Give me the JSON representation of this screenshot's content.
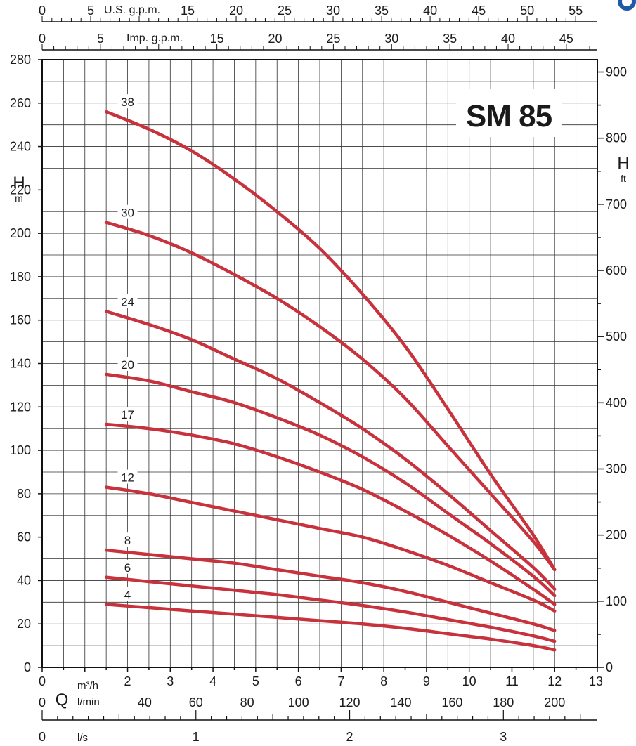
{
  "chart_data": {
    "type": "line",
    "title": "SM 85",
    "xlabel": "Q",
    "ylabel": "H",
    "ylabel_unit": "m",
    "y2label": "H",
    "y2label_unit": "ft",
    "xlim": [
      0,
      13
    ],
    "ylim": [
      0,
      280
    ],
    "y2lim": [
      0,
      918.6
    ],
    "grid": true,
    "x_unit_label": "m³/h",
    "x_ticks": [
      "0",
      "1",
      "2",
      "3",
      "4",
      "5",
      "6",
      "7",
      "8",
      "9",
      "10",
      "11",
      "12",
      "13"
    ],
    "y_ticks": [
      "0",
      "20",
      "40",
      "60",
      "80",
      "100",
      "120",
      "140",
      "160",
      "180",
      "200",
      "220",
      "240",
      "260",
      "280"
    ],
    "y2_ticks": [
      "0",
      "100",
      "200",
      "300",
      "400",
      "500",
      "600",
      "700",
      "800",
      "900"
    ],
    "secondary_axes": {
      "us_gpm": {
        "label": "U.S. g.p.m.",
        "ticks": [
          "0",
          "5",
          "15",
          "20",
          "25",
          "30",
          "35",
          "40",
          "45",
          "50",
          "55"
        ]
      },
      "imp_gpm": {
        "label": "Imp. g.p.m.",
        "ticks": [
          "0",
          "5",
          "15",
          "20",
          "25",
          "30",
          "35",
          "40",
          "45"
        ]
      },
      "lmin": {
        "label": "l/min",
        "ticks": [
          "0",
          "40",
          "60",
          "80",
          "100",
          "120",
          "140",
          "160",
          "180",
          "200"
        ]
      },
      "ls": {
        "label": "l/s",
        "ticks": [
          "0",
          "1",
          "2",
          "3"
        ]
      }
    },
    "series": [
      {
        "name": "38",
        "x": [
          1.5,
          2.5,
          3.5,
          4.5,
          5.5,
          6.5,
          7.5,
          8.5,
          9.5,
          10.5,
          11.5,
          12.0
        ],
        "values": [
          256,
          248,
          238,
          225,
          210,
          193,
          172,
          148,
          119,
          89,
          61,
          45
        ]
      },
      {
        "name": "30",
        "x": [
          1.5,
          2.5,
          3.5,
          4.5,
          5.5,
          6.5,
          7.5,
          8.5,
          9.5,
          10.5,
          11.5,
          12.0
        ],
        "values": [
          205,
          199,
          191,
          181,
          170,
          157,
          142,
          124,
          102,
          80,
          58,
          45
        ]
      },
      {
        "name": "24",
        "x": [
          1.5,
          2.5,
          3.5,
          4.5,
          5.5,
          6.5,
          7.5,
          8.5,
          9.5,
          10.5,
          11.5,
          12.0
        ],
        "values": [
          164,
          158,
          151,
          142,
          133,
          122,
          110,
          96,
          80,
          63,
          46,
          36
        ]
      },
      {
        "name": "20",
        "x": [
          1.5,
          2.5,
          3.5,
          4.5,
          5.5,
          6.5,
          7.5,
          8.5,
          9.5,
          10.5,
          11.5,
          12.0
        ],
        "values": [
          135,
          132,
          127,
          122,
          115,
          107,
          97,
          85,
          71,
          57,
          42,
          33
        ]
      },
      {
        "name": "17",
        "x": [
          1.5,
          2.5,
          3.5,
          4.5,
          5.5,
          6.5,
          7.5,
          8.5,
          9.5,
          10.5,
          11.5,
          12.0
        ],
        "values": [
          112,
          110,
          107,
          103,
          97,
          90,
          82,
          72,
          61,
          49,
          36,
          29
        ]
      },
      {
        "name": "12",
        "x": [
          1.5,
          2.5,
          3.5,
          4.5,
          5.5,
          6.5,
          7.5,
          8.5,
          9.5,
          10.5,
          11.5,
          12.0
        ],
        "values": [
          83,
          80,
          76,
          72,
          68,
          64,
          60,
          54,
          47,
          39,
          31,
          26
        ]
      },
      {
        "name": "8",
        "x": [
          1.5,
          2.5,
          3.5,
          4.5,
          5.5,
          6.5,
          7.5,
          8.5,
          9.5,
          10.5,
          11.5,
          12.0
        ],
        "values": [
          54,
          52,
          50,
          48,
          45,
          42,
          39,
          35,
          30,
          25,
          20,
          17
        ]
      },
      {
        "name": "6",
        "x": [
          1.5,
          2.5,
          3.5,
          4.5,
          5.5,
          6.5,
          7.5,
          8.5,
          9.5,
          10.5,
          11.5,
          12.0
        ],
        "values": [
          41.5,
          39.5,
          37.5,
          35.5,
          33.5,
          31,
          28.5,
          25.5,
          22,
          18.5,
          14.5,
          12
        ]
      },
      {
        "name": "4",
        "x": [
          1.5,
          2.5,
          3.5,
          4.5,
          5.5,
          6.5,
          7.5,
          8.5,
          9.5,
          10.5,
          11.5,
          12.0
        ],
        "values": [
          29,
          27.5,
          26,
          24.5,
          23,
          21.5,
          20,
          18,
          15.5,
          13,
          10,
          8
        ]
      }
    ],
    "line_color": "#c8323c",
    "logo_color": "#1e5aa8"
  }
}
